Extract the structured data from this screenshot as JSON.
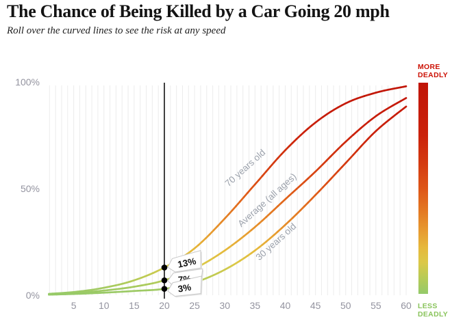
{
  "header": {
    "title": "The Chance of Being Killed by a Car Going 20 mph",
    "subtitle": "Roll over the curved lines to see the risk at any speed"
  },
  "legend_bar": {
    "top_label_line1": "MORE",
    "top_label_line2": "DEADLY",
    "bottom_label_line1": "LESS",
    "bottom_label_line2": "DEADLY",
    "top_label_color": "#cc1104",
    "bottom_label_color": "#8ac45c"
  },
  "colors": {
    "axis_label": "#93939f",
    "gridline": "#ececec",
    "curve_label": "#9ba1ab",
    "hover_line": "#111111",
    "tag_border": "#c8c8c8",
    "tag_text": "#111111"
  },
  "risk_colormap": [
    {
      "pct": 0,
      "color": "#94ca6a"
    },
    {
      "pct": 8,
      "color": "#b9cb55"
    },
    {
      "pct": 15,
      "color": "#dcc847"
    },
    {
      "pct": 22,
      "color": "#e6b83b"
    },
    {
      "pct": 30,
      "color": "#e79a30"
    },
    {
      "pct": 40,
      "color": "#e37621"
    },
    {
      "pct": 50,
      "color": "#de5517"
    },
    {
      "pct": 62,
      "color": "#d43a10"
    },
    {
      "pct": 75,
      "color": "#cb220b"
    },
    {
      "pct": 100,
      "color": "#c01406"
    }
  ],
  "chart_data": {
    "type": "line",
    "title": "The Chance of Being Killed by a Car Going 20 mph",
    "xlabel": "",
    "ylabel": "",
    "xlim": [
      0,
      60
    ],
    "ylim": [
      0,
      100
    ],
    "grid": "vertical-every-1mph",
    "x_ticks": [
      5,
      10,
      15,
      20,
      25,
      30,
      35,
      40,
      45,
      50,
      55,
      60
    ],
    "y_ticks": [
      {
        "pct": 0,
        "label": "0%"
      },
      {
        "pct": 50,
        "label": "50%"
      },
      {
        "pct": 100,
        "label": "100%"
      }
    ],
    "x": [
      0,
      5,
      10,
      15,
      20,
      25,
      30,
      35,
      40,
      45,
      50,
      55,
      60
    ],
    "series": [
      {
        "name": "70 years old",
        "values": [
          0.5,
          1.5,
          3.5,
          7.0,
          13.0,
          22.0,
          36.0,
          52.0,
          68.0,
          81.0,
          90.0,
          95.0,
          98.0
        ]
      },
      {
        "name": "Average (all ages)",
        "values": [
          0.3,
          1.0,
          2.2,
          4.0,
          7.0,
          12.5,
          21.0,
          32.0,
          45.0,
          58.0,
          72.0,
          84.0,
          92.5
        ]
      },
      {
        "name": "30 years old",
        "values": [
          0.2,
          0.6,
          1.2,
          2.0,
          3.0,
          6.0,
          12.0,
          21.0,
          33.0,
          47.0,
          62.0,
          77.0,
          88.5
        ]
      }
    ],
    "highlight": {
      "speed": 20,
      "callouts": [
        {
          "series": "70 years old",
          "value": 13,
          "label": "13%"
        },
        {
          "series": "Average (all ages)",
          "value": 7,
          "label": "7%"
        },
        {
          "series": "30 years old",
          "value": 3,
          "label": "3%"
        }
      ]
    }
  }
}
